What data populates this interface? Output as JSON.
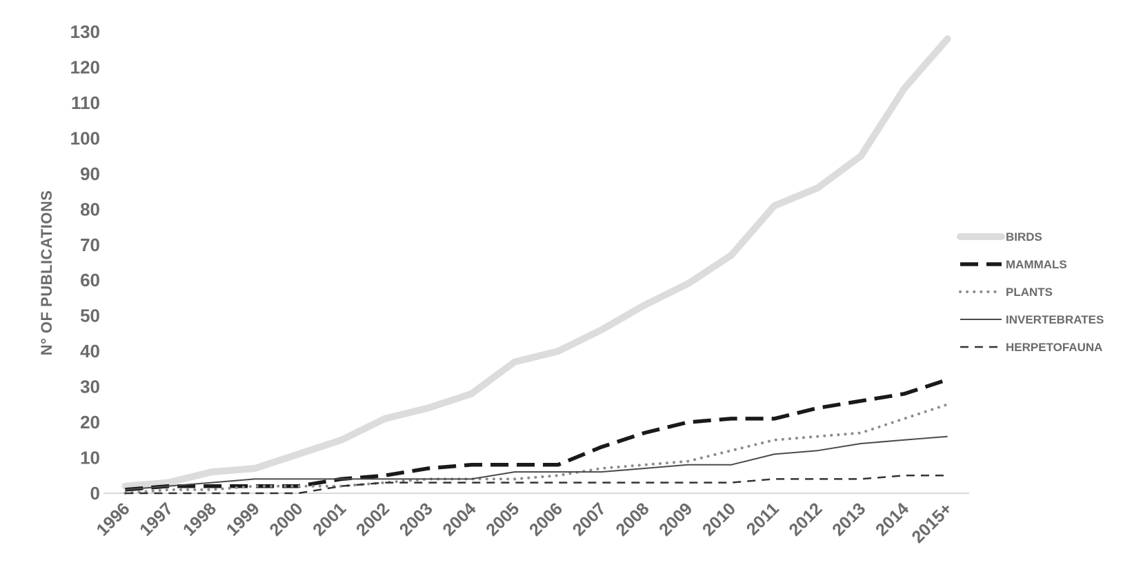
{
  "chart_data": {
    "type": "line",
    "title": "",
    "xlabel": "",
    "ylabel": "N° OF PUBLICATIONS",
    "ylim": [
      0,
      130
    ],
    "yticks": [
      0,
      10,
      20,
      30,
      40,
      50,
      60,
      70,
      80,
      90,
      100,
      110,
      120,
      130
    ],
    "grid": false,
    "legend_position": "right",
    "categories": [
      "1996",
      "1997",
      "1998",
      "1999",
      "2000",
      "2001",
      "2002",
      "2003",
      "2004",
      "2005",
      "2006",
      "2007",
      "2008",
      "2009",
      "2010",
      "2011",
      "2012",
      "2013",
      "2014",
      "2015+"
    ],
    "series": [
      {
        "name": "BIRDS",
        "style": "thick-solid",
        "color": "#dcdcdc",
        "values": [
          2,
          3,
          6,
          7,
          11,
          15,
          21,
          24,
          28,
          37,
          40,
          46,
          53,
          59,
          67,
          81,
          86,
          95,
          114,
          128
        ]
      },
      {
        "name": "MAMMALS",
        "style": "thick-dashed",
        "color": "#1a1a1a",
        "values": [
          1,
          2,
          2,
          2,
          2,
          4,
          5,
          7,
          8,
          8,
          8,
          13,
          17,
          20,
          21,
          21,
          24,
          26,
          28,
          32
        ]
      },
      {
        "name": "PLANTS",
        "style": "dotted",
        "color": "#8c8c8c",
        "values": [
          0,
          1,
          1,
          2,
          2,
          2,
          3,
          4,
          4,
          4,
          5,
          7,
          8,
          9,
          12,
          15,
          16,
          17,
          21,
          25
        ]
      },
      {
        "name": "INVERTEBRATES",
        "style": "thin-solid",
        "color": "#4a4a4a",
        "values": [
          1,
          2,
          3,
          4,
          4,
          4,
          4,
          4,
          4,
          6,
          6,
          6,
          7,
          8,
          8,
          11,
          12,
          14,
          15,
          16
        ]
      },
      {
        "name": "HERPETOFAUNA",
        "style": "thin-dashed",
        "color": "#333333",
        "values": [
          0,
          0,
          0,
          0,
          0,
          2,
          3,
          3,
          3,
          3,
          3,
          3,
          3,
          3,
          3,
          4,
          4,
          4,
          5,
          5
        ]
      }
    ]
  }
}
